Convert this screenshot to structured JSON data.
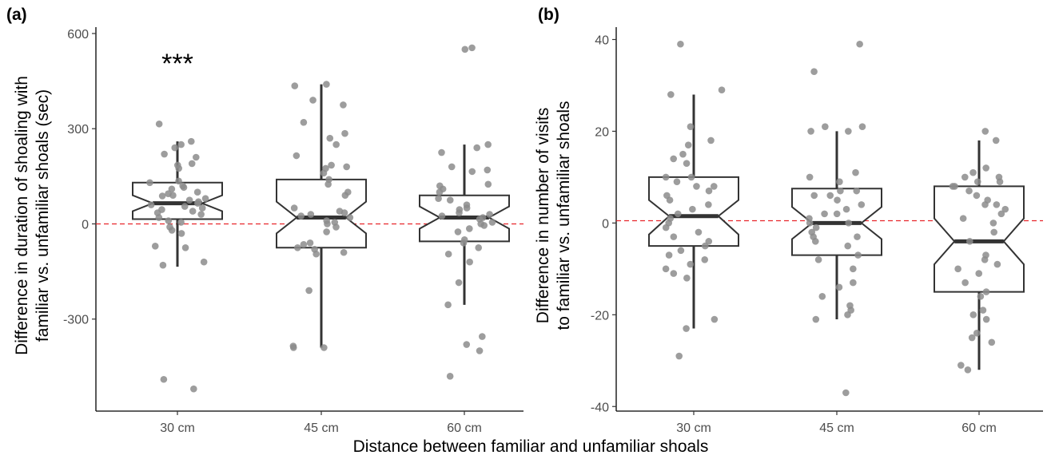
{
  "xlabel": "Distance between familiar and unfamiliar shoals",
  "chart_data": [
    {
      "panel_label": "(a)",
      "type": "boxplot",
      "notched": true,
      "ylabel": "Difference in duration of shoaling with familiar vs. unfamiliar shoals (sec)",
      "ylabel_lines": [
        "Difference in duration of shoaling with",
        "familiar vs. unfamiliar shoals (sec)"
      ],
      "categories": [
        "30 cm",
        "45 cm",
        "60 cm"
      ],
      "yticks": [
        -300,
        0,
        300,
        600
      ],
      "ytick_labels": [
        "-300",
        "0",
        "300",
        "600"
      ],
      "ylim": [
        -590,
        610
      ],
      "reference_line": 0,
      "annotation": {
        "text": "***",
        "category": "30 cm"
      },
      "boxes": [
        {
          "category": "30 cm",
          "min": -135,
          "q1": 15,
          "median": 65,
          "q3": 130,
          "max": 260,
          "notch_low": 40,
          "notch_high": 90
        },
        {
          "category": "45 cm",
          "min": -390,
          "q1": -75,
          "median": 20,
          "q3": 140,
          "max": 440,
          "notch_low": -30,
          "notch_high": 70
        },
        {
          "category": "60 cm",
          "min": -255,
          "q1": -55,
          "median": 20,
          "q3": 90,
          "max": 250,
          "notch_low": -15,
          "notch_high": 55
        }
      ],
      "points": [
        {
          "category": "30 cm",
          "values": [
            315,
            260,
            250,
            240,
            220,
            210,
            190,
            185,
            175,
            135,
            130,
            120,
            115,
            110,
            100,
            95,
            90,
            88,
            80,
            75,
            70,
            65,
            60,
            55,
            50,
            45,
            40,
            35,
            30,
            20,
            10,
            5,
            -10,
            -20,
            -30,
            -70,
            -75,
            -120,
            -130,
            -490,
            -520
          ]
        },
        {
          "category": "45 cm",
          "values": [
            440,
            435,
            390,
            375,
            320,
            285,
            270,
            250,
            215,
            185,
            180,
            175,
            160,
            140,
            125,
            100,
            90,
            50,
            40,
            35,
            30,
            25,
            20,
            10,
            5,
            0,
            -10,
            -25,
            -60,
            -65,
            -75,
            -80,
            -90,
            -95,
            -210,
            -385,
            -390,
            -390
          ]
        },
        {
          "category": "60 cm",
          "values": [
            555,
            550,
            250,
            240,
            225,
            180,
            170,
            165,
            125,
            120,
            110,
            100,
            80,
            75,
            60,
            50,
            45,
            35,
            30,
            25,
            20,
            15,
            5,
            0,
            -5,
            -15,
            -25,
            -50,
            -60,
            -75,
            -95,
            -120,
            -185,
            -255,
            -355,
            -380,
            -400,
            -480
          ]
        }
      ]
    },
    {
      "panel_label": "(b)",
      "type": "boxplot",
      "notched": true,
      "ylabel": "Difference in number of visits to familiar vs. unfamiliar shoals",
      "ylabel_lines": [
        "Difference in number of visits",
        "to familiar vs. unfamiliar shoals"
      ],
      "categories": [
        "30 cm",
        "45 cm",
        "60 cm"
      ],
      "yticks": [
        -40,
        -20,
        0,
        20,
        40
      ],
      "ytick_labels": [
        "-40",
        "-20",
        "0",
        "20",
        "40"
      ],
      "ylim": [
        -41,
        42
      ],
      "reference_line": 0.5,
      "boxes": [
        {
          "category": "30 cm",
          "min": -23,
          "q1": -5,
          "median": 1.5,
          "q3": 10,
          "max": 28,
          "notch_low": -2.5,
          "notch_high": 5
        },
        {
          "category": "45 cm",
          "min": -21,
          "q1": -7,
          "median": 0,
          "q3": 7.5,
          "max": 20,
          "notch_low": -3.5,
          "notch_high": 3.5
        },
        {
          "category": "60 cm",
          "min": -32,
          "q1": -15,
          "median": -4,
          "q3": 8,
          "max": 18,
          "notch_low": -9,
          "notch_high": 1
        }
      ],
      "points": [
        {
          "category": "30 cm",
          "values": [
            39,
            29,
            28,
            21,
            18,
            17,
            15,
            14,
            13,
            10,
            10,
            9,
            8,
            8,
            7,
            6,
            5,
            4,
            3,
            2,
            1,
            0,
            -1,
            -2,
            -3,
            -4,
            -5,
            -6,
            -7,
            -8,
            -9,
            -10,
            -11,
            -12,
            -21,
            -23,
            -29
          ]
        },
        {
          "category": "45 cm",
          "values": [
            39,
            33,
            21,
            21,
            20,
            20,
            11,
            10,
            9,
            7,
            7,
            6,
            6,
            5,
            4,
            3,
            2,
            2,
            1,
            0,
            0,
            -1,
            -2,
            -3,
            -3,
            -4,
            -5,
            -7,
            -8,
            -10,
            -13,
            -14,
            -16,
            -18,
            -19,
            -20,
            -21,
            -37
          ]
        },
        {
          "category": "60 cm",
          "values": [
            20,
            18,
            12,
            11,
            10,
            10,
            9,
            9,
            8,
            8,
            7,
            6,
            5,
            4,
            4,
            3,
            2,
            1,
            0,
            -2,
            -4,
            -7,
            -8,
            -9,
            -10,
            -11,
            -13,
            -15,
            -16,
            -19,
            -20,
            -21,
            -24,
            -25,
            -26,
            -31,
            -32
          ]
        }
      ]
    }
  ]
}
